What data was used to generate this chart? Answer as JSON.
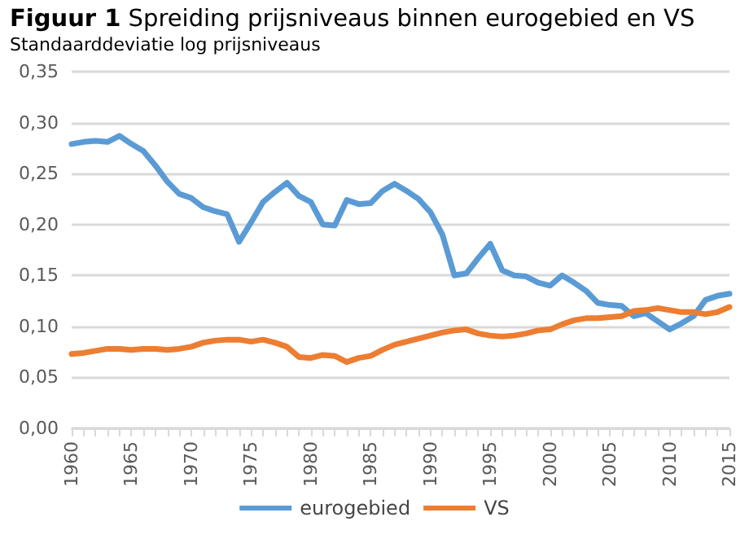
{
  "chart_data": {
    "type": "line",
    "title": "Figuur 1 Spreiding prijsniveaus binnen eurogebied en VS",
    "ylabel": "Standaarddeviatie log prijsniveaus",
    "categories": [
      "1960",
      null,
      null,
      null,
      null,
      "1965",
      null,
      null,
      null,
      null,
      "1970",
      null,
      null,
      null,
      null,
      "1975",
      null,
      null,
      null,
      null,
      "1980",
      null,
      null,
      null,
      null,
      "1985",
      null,
      null,
      null,
      null,
      "1990",
      null,
      null,
      null,
      null,
      "1995",
      null,
      null,
      null,
      null,
      "2000",
      null,
      null,
      null,
      null,
      "2005",
      null,
      null,
      null,
      null,
      "2010",
      null,
      null,
      null,
      null,
      "2015"
    ],
    "series": [
      {
        "name": "eurogebied",
        "color": "#5b9bd5",
        "values": [
          0.279,
          0.281,
          0.282,
          0.281,
          0.287,
          0.279,
          0.272,
          0.258,
          0.242,
          0.23,
          0.226,
          0.217,
          0.213,
          0.21,
          0.183,
          0.202,
          0.222,
          0.232,
          0.241,
          0.228,
          0.222,
          0.2,
          0.199,
          0.224,
          0.22,
          0.221,
          0.233,
          0.24,
          0.233,
          0.225,
          0.212,
          0.19,
          0.15,
          0.152,
          0.167,
          0.181,
          0.155,
          0.15,
          0.149,
          0.143,
          0.14,
          0.15,
          0.143,
          0.135,
          0.123,
          0.121,
          0.12,
          0.11,
          0.113,
          0.105,
          0.097,
          0.103,
          0.11,
          0.126,
          0.13,
          0.132
        ]
      },
      {
        "name": "VS",
        "color": "#ed7d31",
        "values": [
          0.073,
          0.074,
          0.076,
          0.078,
          0.078,
          0.077,
          0.078,
          0.078,
          0.077,
          0.078,
          0.08,
          0.084,
          0.086,
          0.087,
          0.087,
          0.085,
          0.087,
          0.084,
          0.08,
          0.07,
          0.069,
          0.072,
          0.071,
          0.065,
          0.069,
          0.071,
          0.077,
          0.082,
          0.085,
          0.088,
          0.091,
          0.094,
          0.096,
          0.097,
          0.093,
          0.091,
          0.09,
          0.091,
          0.093,
          0.096,
          0.097,
          0.102,
          0.106,
          0.108,
          0.108,
          0.109,
          0.11,
          0.115,
          0.116,
          0.118,
          0.116,
          0.114,
          0.114,
          0.112,
          0.114,
          0.119
        ]
      }
    ],
    "ylim": [
      0,
      0.35
    ],
    "yticks": [
      {
        "value": 0,
        "label": "0,00"
      },
      {
        "value": 0.05,
        "label": "0,05"
      },
      {
        "value": 0.1,
        "label": "0,10"
      },
      {
        "value": 0.15,
        "label": "0,15"
      },
      {
        "value": 0.2,
        "label": "0,20"
      },
      {
        "value": 0.25,
        "label": "0,25"
      },
      {
        "value": 0.3,
        "label": "0,30"
      },
      {
        "value": 0.35,
        "label": "0,35"
      }
    ],
    "grid": "y",
    "legend": "bottom",
    "marker": "none",
    "line_style": "solid"
  }
}
